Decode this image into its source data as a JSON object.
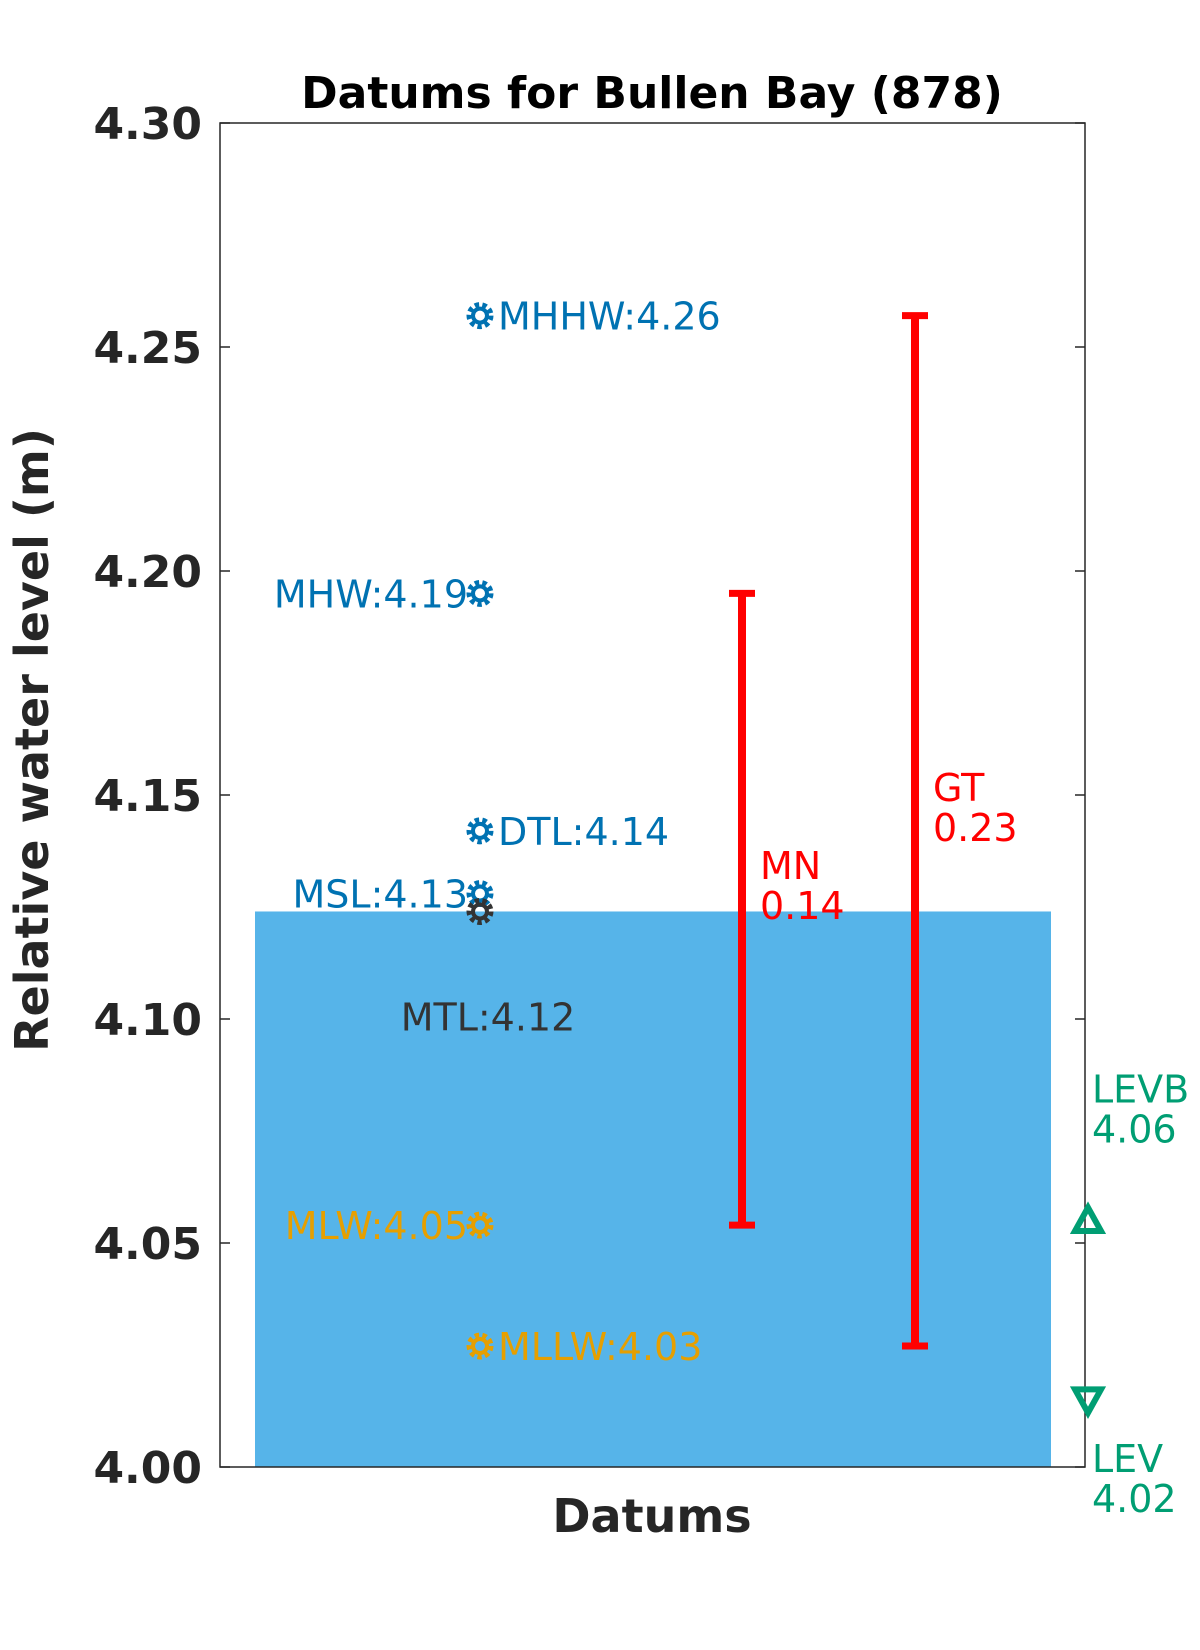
{
  "chart_data": {
    "type": "scatter",
    "title": "Datums for Bullen Bay (878)",
    "xlabel": "Datums",
    "ylabel": "Relative water level (m)",
    "ylim": [
      4.0,
      4.3
    ],
    "yticks": [
      "4.00",
      "4.05",
      "4.10",
      "4.15",
      "4.20",
      "4.25",
      "4.30"
    ],
    "grid": false,
    "fill_area": {
      "from": 4.0,
      "to": 4.124,
      "color": "#56B4E9"
    },
    "datums": [
      {
        "label": "MHHW:4.26",
        "y": 4.257,
        "color": "#0072B2",
        "label_side": "right",
        "label_dy": 0
      },
      {
        "label": "MHW:4.19",
        "y": 4.195,
        "color": "#0072B2",
        "label_side": "left",
        "label_dy": 0
      },
      {
        "label": "DTL:4.14",
        "y": 4.142,
        "color": "#0072B2",
        "label_side": "right",
        "label_dy": 0
      },
      {
        "label": "MSL:4.13",
        "y": 4.128,
        "color": "#0072B2",
        "label_side": "left",
        "label_dy": 0
      },
      {
        "label": "MTL:4.12",
        "y": 4.124,
        "color": "#333333",
        "label_side": "below",
        "label_dy": 105
      },
      {
        "label": "MLW:4.05",
        "y": 4.054,
        "color": "#E69F00",
        "label_side": "left",
        "label_dy": 0
      },
      {
        "label": "MLLW:4.03",
        "y": 4.027,
        "color": "#E69F00",
        "label_side": "right",
        "label_dy": 0
      }
    ],
    "ranges": [
      {
        "name": "MN",
        "value": "0.14",
        "low": 4.054,
        "high": 4.195,
        "color": "#FF0000"
      },
      {
        "name": "GT",
        "value": "0.23",
        "low": 4.027,
        "high": 4.257,
        "color": "#FF0000"
      }
    ],
    "extremes": [
      {
        "name": "LEVB",
        "value": "4.06",
        "y": 4.055,
        "marker": "triangle-up",
        "color": "#009E73"
      },
      {
        "name": "LEV",
        "value": "4.02",
        "y": 4.015,
        "marker": "triangle-down",
        "color": "#009E73"
      }
    ]
  }
}
